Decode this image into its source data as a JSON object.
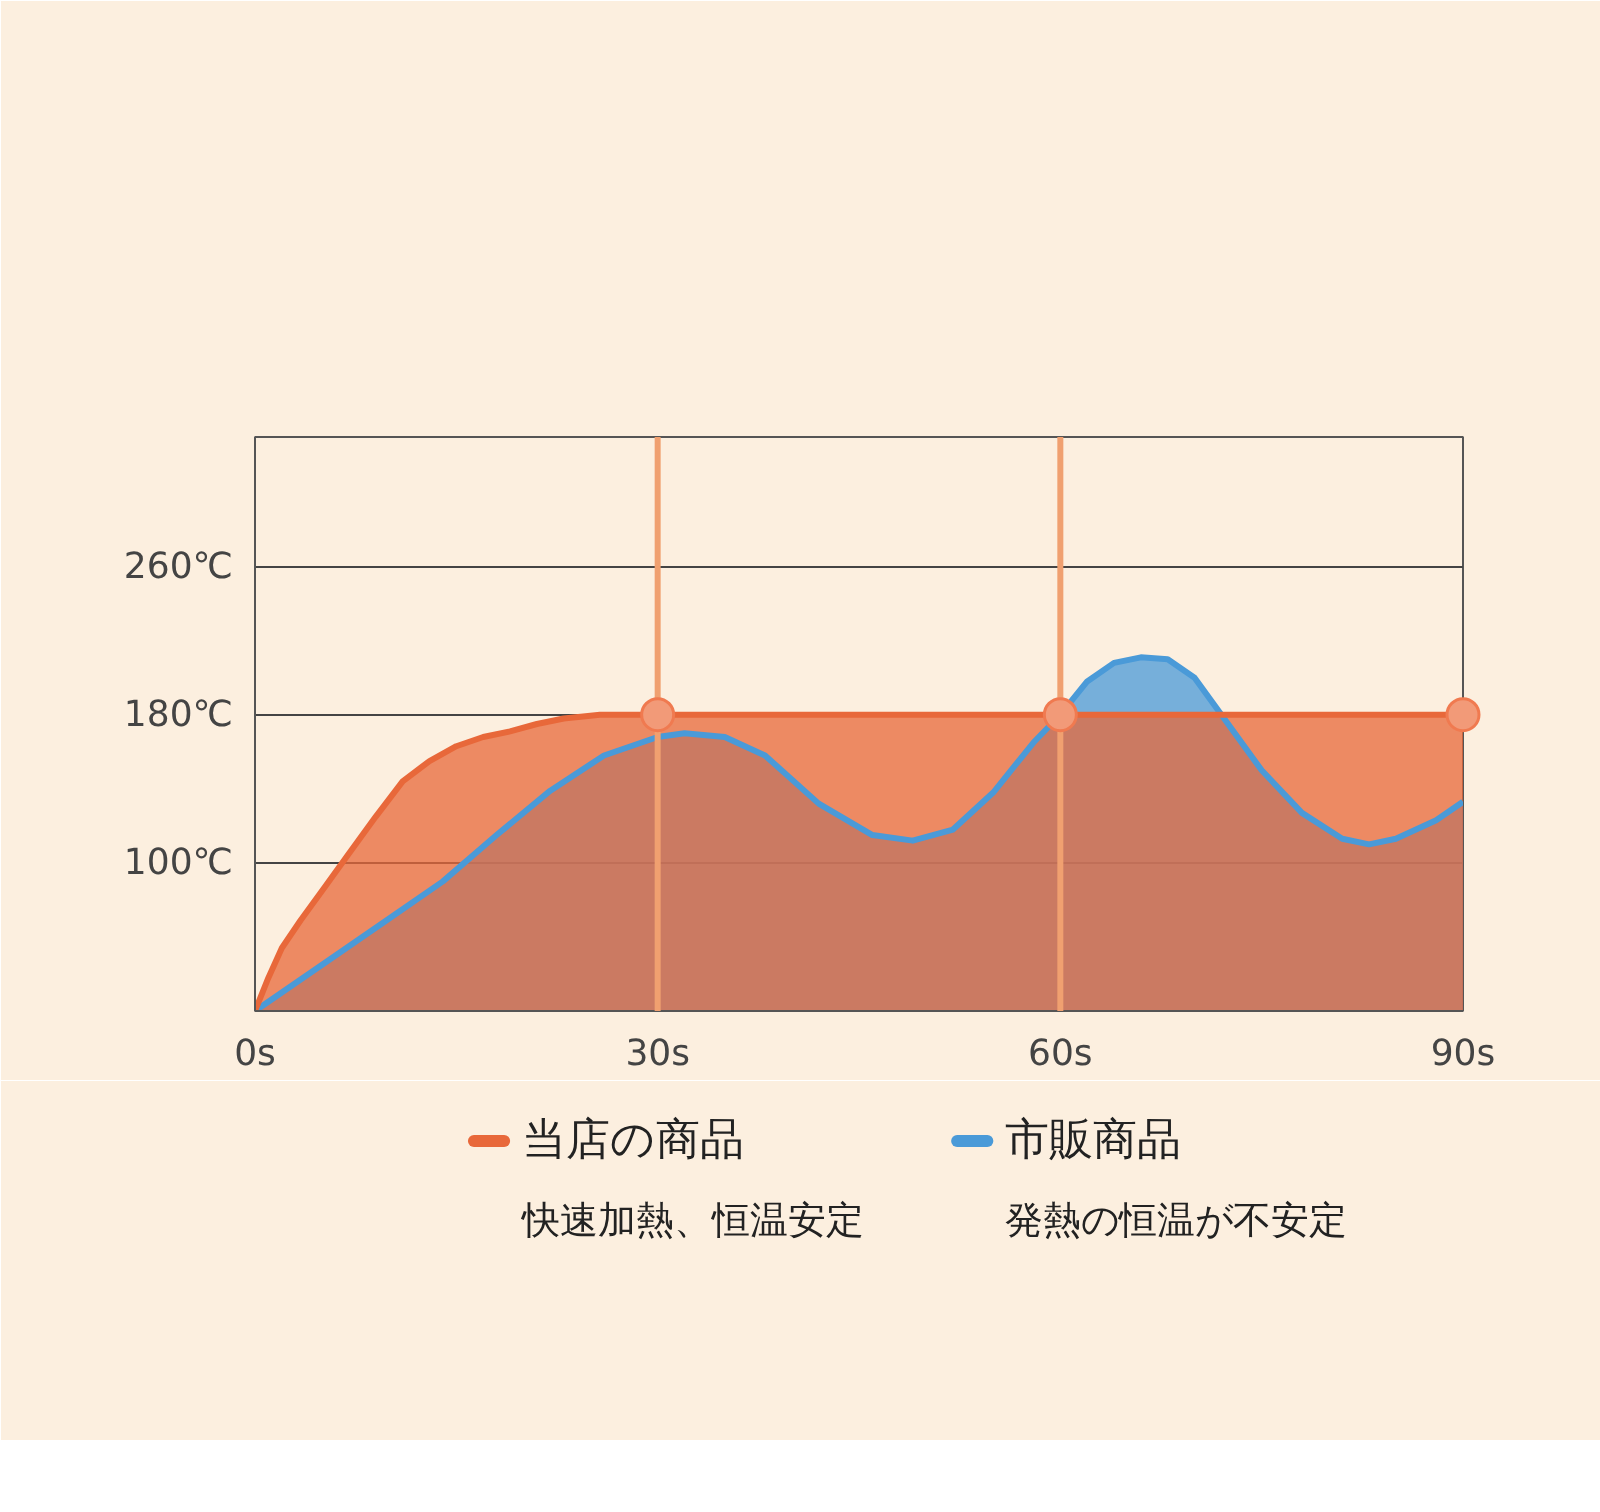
{
  "chart_data": {
    "type": "area",
    "xlim": [
      0,
      90
    ],
    "ylim": [
      20,
      330
    ],
    "xticks": [
      {
        "value": 0,
        "label": "0s"
      },
      {
        "value": 30,
        "label": "30s"
      },
      {
        "value": 60,
        "label": "60s"
      },
      {
        "value": 90,
        "label": "90s"
      }
    ],
    "yticks": [
      {
        "value": 100,
        "label": "100℃"
      },
      {
        "value": 180,
        "label": "180℃"
      },
      {
        "value": 260,
        "label": "260℃"
      }
    ],
    "grid": "y",
    "legend": "bottom",
    "series": [
      {
        "name": "市販商品",
        "color": "#4a9ad8",
        "x": [
          0,
          5,
          10,
          14,
          18,
          22,
          26,
          30,
          32,
          35,
          38,
          42,
          46,
          49,
          52,
          55,
          58,
          60,
          62,
          64,
          66,
          68,
          70,
          72,
          75,
          78,
          81,
          83,
          85,
          88,
          90
        ],
        "values": [
          20,
          45,
          70,
          90,
          115,
          139,
          158,
          168,
          170,
          168,
          158,
          132,
          115,
          112,
          118,
          138,
          165,
          180,
          198,
          208,
          211,
          210,
          200,
          180,
          150,
          127,
          113,
          110,
          113,
          123,
          133
        ]
      },
      {
        "name": "当店の商品",
        "color": "#e8683a",
        "x": [
          0,
          1,
          2,
          3.4,
          5,
          7,
          9,
          11,
          13,
          15,
          17,
          19,
          21,
          23,
          25.7,
          30,
          40,
          50,
          60,
          70,
          80,
          90
        ],
        "values": [
          20,
          38,
          54,
          69,
          85,
          105,
          125,
          144,
          155,
          163,
          168,
          171,
          175,
          178,
          180,
          180,
          180,
          180,
          180,
          180,
          180,
          180
        ]
      },
      {
        "color": "#f29a78",
        "type": "scatter",
        "marker": "circle",
        "x": [
          30,
          60,
          90
        ],
        "values": [
          180,
          180,
          180
        ]
      }
    ],
    "ref_lines": [
      {
        "axis": "x",
        "value": 30,
        "color": "#f0a070"
      },
      {
        "axis": "x",
        "value": 60,
        "color": "#f0a070"
      }
    ],
    "annotations": [
      "快速加熱、恒温安定",
      "発熱の恒温が不安定"
    ]
  }
}
